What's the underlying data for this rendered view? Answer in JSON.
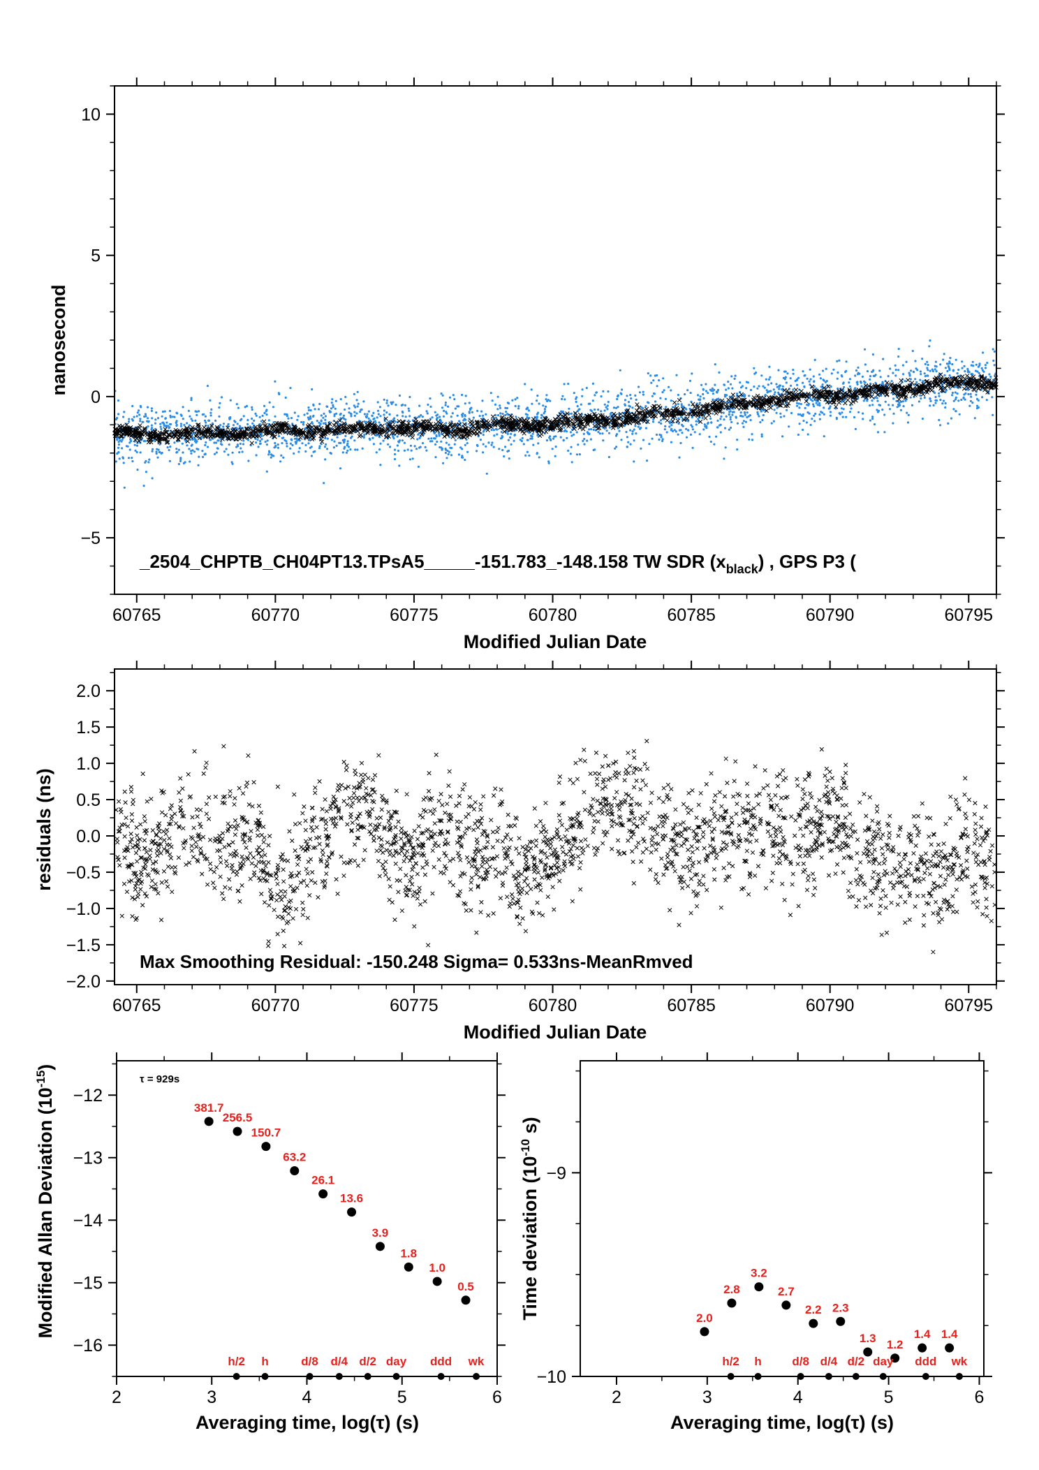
{
  "colors": {
    "axis": "#000000",
    "blue": "#2b8ce6",
    "black": "#000000",
    "red": "#e8201c"
  },
  "panel1": {
    "ylabel": "nanosecond",
    "xlabel": "Modified Julian Date",
    "note": "_2504_CHPTB_CH04PT13.TPsA5_____-151.783_-148.158     TW SDR (x",
    "note_sub": "black",
    "note_tail": ") ,  GPS P3 (",
    "xticks": [
      "60765",
      "60770",
      "60775",
      "60780",
      "60785",
      "60790",
      "60795"
    ],
    "yticks": [
      "10",
      "5",
      "0",
      "−5"
    ]
  },
  "panel2": {
    "ylabel": "residuals (ns)",
    "xlabel": "Modified Julian Date",
    "note": "Max Smoothing Residual: -150.248  Sigma= 0.533ns-MeanRmved",
    "xticks": [
      "60765",
      "60770",
      "60775",
      "60780",
      "60785",
      "60790",
      "60795"
    ],
    "yticks": [
      "2.0",
      "1.5",
      "1.0",
      "0.5",
      "0.0",
      "−0.5",
      "−1.0",
      "−1.5",
      "−2.0"
    ]
  },
  "panel3": {
    "ylabel_main": "Modified Allan Deviation (10",
    "ylabel_sup": "-15",
    "ylabel_tail": ")",
    "xlabel": "Averaging time, log(τ) (s)",
    "tau_note": "τ = 929s",
    "xticks": [
      "2",
      "3",
      "4",
      "5",
      "6"
    ],
    "yticks": [
      "−12",
      "−13",
      "−14",
      "−15",
      "−16"
    ]
  },
  "panel4": {
    "ylabel_main": "Time deviation (10",
    "ylabel_sup": "-10",
    "ylabel_tail": " s)",
    "xlabel": "Averaging time, log(τ) (s)",
    "xticks": [
      "2",
      "3",
      "4",
      "5",
      "6"
    ],
    "yticks": [
      "−9",
      "−10"
    ]
  },
  "chart_data": [
    {
      "type": "scatter",
      "x_range": [
        60764.2,
        60796.0
      ],
      "y_range": [
        -7.0,
        11.0
      ],
      "series": [
        {
          "color": "#2b8ce6",
          "marker": "dot",
          "trend_x": [
            60764.2,
            60766,
            60768,
            60770,
            60772,
            60774,
            60776,
            60778,
            60780,
            60782,
            60784,
            60786,
            60788,
            60790,
            60792,
            60794,
            60796
          ],
          "trend_y": [
            -1.3,
            -1.35,
            -1.3,
            -1.2,
            -1.2,
            -1.1,
            -1.2,
            -1.05,
            -0.95,
            -0.85,
            -0.6,
            -0.4,
            -0.1,
            0.05,
            0.2,
            0.45,
            0.5
          ],
          "scatter_sd": 0.55
        },
        {
          "color": "#000000",
          "marker": "cross",
          "trend_x": [
            60764.2,
            60766,
            60768,
            60770,
            60772,
            60774,
            60776,
            60778,
            60780,
            60782,
            60784,
            60786,
            60788,
            60790,
            60792,
            60794,
            60796
          ],
          "trend_y": [
            -1.3,
            -1.35,
            -1.3,
            -1.2,
            -1.2,
            -1.1,
            -1.2,
            -1.05,
            -0.95,
            -0.85,
            -0.6,
            -0.4,
            -0.1,
            0.05,
            0.2,
            0.45,
            0.5
          ],
          "scatter_sd": 0.12
        }
      ]
    },
    {
      "type": "scatter",
      "x_range": [
        60764.2,
        60796.0
      ],
      "y_range": [
        -2.05,
        2.3
      ],
      "series": [
        {
          "color": "#000000",
          "marker": "cross",
          "wave_x": [
            60764.2,
            60765,
            60766,
            60767,
            60768,
            60769,
            60770,
            60771,
            60772,
            60773,
            60774,
            60775,
            60776,
            60777,
            60778,
            60779,
            60780,
            60781,
            60782,
            60783,
            60784,
            60785,
            60786,
            60787,
            60788,
            60789,
            60790,
            60791,
            60792,
            60793,
            60794,
            60795,
            60796
          ],
          "wave_y": [
            0.1,
            -0.4,
            -0.1,
            0.2,
            -0.1,
            0.0,
            -0.8,
            -0.3,
            0.1,
            0.4,
            0.0,
            -0.4,
            0.1,
            -0.3,
            -0.2,
            -0.6,
            -0.3,
            0.2,
            0.5,
            0.3,
            0.0,
            -0.2,
            0.1,
            0.0,
            0.2,
            0.0,
            0.3,
            -0.2,
            -0.5,
            -0.3,
            -0.6,
            -0.2,
            -0.5
          ],
          "scatter_sd": 0.4
        }
      ]
    },
    {
      "type": "scatter",
      "x_range": [
        2,
        6
      ],
      "y_range": [
        -16.5,
        -11.45
      ],
      "points": [
        {
          "x": 2.97,
          "y": -12.42,
          "label": "381.7"
        },
        {
          "x": 3.27,
          "y": -12.58,
          "label": "256.5"
        },
        {
          "x": 3.57,
          "y": -12.82,
          "label": "150.7"
        },
        {
          "x": 3.87,
          "y": -13.21,
          "label": "63.2"
        },
        {
          "x": 4.17,
          "y": -13.58,
          "label": "26.1"
        },
        {
          "x": 4.47,
          "y": -13.87,
          "label": "13.6"
        },
        {
          "x": 4.77,
          "y": -14.42,
          "label": "3.9"
        },
        {
          "x": 5.07,
          "y": -14.75,
          "label": "1.8"
        },
        {
          "x": 5.37,
          "y": -14.98,
          "label": "1.0"
        },
        {
          "x": 5.67,
          "y": -15.28,
          "label": "0.5"
        }
      ],
      "markers": [
        {
          "x": 3.26,
          "label": "h/2"
        },
        {
          "x": 3.56,
          "label": "h"
        },
        {
          "x": 4.03,
          "label": "d/8"
        },
        {
          "x": 4.34,
          "label": "d/4"
        },
        {
          "x": 4.64,
          "label": "d/2"
        },
        {
          "x": 4.94,
          "label": "day"
        },
        {
          "x": 5.41,
          "label": "ddd"
        },
        {
          "x": 5.78,
          "label": "wk"
        }
      ]
    },
    {
      "type": "scatter",
      "x_range": [
        1.6,
        6.05
      ],
      "y_range": [
        -10.0,
        -8.45
      ],
      "points": [
        {
          "x": 2.97,
          "y": -9.78,
          "label": "2.0"
        },
        {
          "x": 3.27,
          "y": -9.64,
          "label": "2.8"
        },
        {
          "x": 3.57,
          "y": -9.56,
          "label": "3.2"
        },
        {
          "x": 3.87,
          "y": -9.65,
          "label": "2.7"
        },
        {
          "x": 4.17,
          "y": -9.74,
          "label": "2.2"
        },
        {
          "x": 4.47,
          "y": -9.73,
          "label": "2.3"
        },
        {
          "x": 4.77,
          "y": -9.88,
          "label": "1.3"
        },
        {
          "x": 5.07,
          "y": -9.91,
          "label": "1.2"
        },
        {
          "x": 5.37,
          "y": -9.86,
          "label": "1.4"
        },
        {
          "x": 5.67,
          "y": -9.86,
          "label": "1.4"
        }
      ],
      "markers": [
        {
          "x": 3.26,
          "label": "h/2"
        },
        {
          "x": 3.56,
          "label": "h"
        },
        {
          "x": 4.03,
          "label": "d/8"
        },
        {
          "x": 4.34,
          "label": "d/4"
        },
        {
          "x": 4.64,
          "label": "d/2"
        },
        {
          "x": 4.94,
          "label": "day"
        },
        {
          "x": 5.41,
          "label": "ddd"
        },
        {
          "x": 5.78,
          "label": "wk"
        }
      ]
    }
  ]
}
